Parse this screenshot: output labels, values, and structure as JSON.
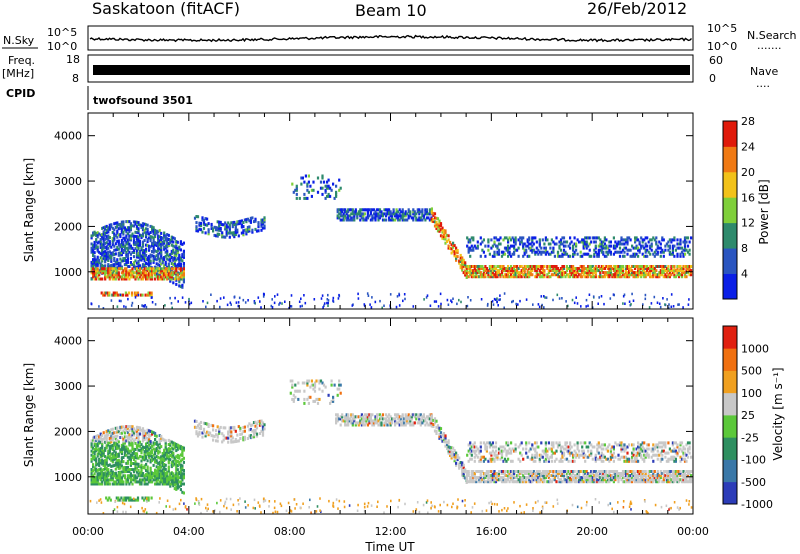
{
  "header": {
    "station": "Saskatoon (fitACF)",
    "beam": "Beam 10",
    "date": "26/Feb/2012"
  },
  "panels": {
    "nsky": {
      "label": "N.Sky",
      "tick_top": "10^5",
      "tick_bottom": "10^0",
      "right_label": "N.Search",
      "right_dots": "·······",
      "right_tick_top": "10^5",
      "right_tick_bottom": "10^0"
    },
    "freq": {
      "label_line1": "Freq.",
      "label_line2": "[MHz]",
      "tick_top": "18",
      "tick_bottom": "8",
      "right_label": "Nave",
      "right_dots": "····",
      "right_tick_top": "60",
      "right_tick_bottom": "0"
    },
    "cpid": {
      "label": "CPID",
      "value": "twofsound 3501"
    }
  },
  "chart_data": [
    {
      "type": "heatmap",
      "title": "",
      "xlabel": "Time UT",
      "ylabel": "Slant Range [km]",
      "x_ticks": [
        "00:00",
        "04:00",
        "08:00",
        "12:00",
        "16:00",
        "20:00",
        "00:00"
      ],
      "x_range_hours": [
        0,
        24
      ],
      "y_ticks": [
        1000,
        2000,
        3000,
        4000
      ],
      "ylim": [
        180,
        4500
      ],
      "colorbar": {
        "label": "Power [dB]",
        "ticks": [
          "4",
          "8",
          "12",
          "16",
          "20",
          "24",
          "28"
        ],
        "colors": [
          "#0a1fe6",
          "#2a55c0",
          "#2e8a6c",
          "#7fcf3a",
          "#f2c21a",
          "#f07a14",
          "#e01a0a"
        ]
      }
    },
    {
      "type": "heatmap",
      "title": "",
      "xlabel": "Time UT",
      "ylabel": "Slant Range [km]",
      "x_ticks": [
        "00:00",
        "04:00",
        "08:00",
        "12:00",
        "16:00",
        "20:00",
        "00:00"
      ],
      "x_range_hours": [
        0,
        24
      ],
      "y_ticks": [
        1000,
        2000,
        3000,
        4000
      ],
      "ylim": [
        180,
        4500
      ],
      "colorbar": {
        "label": "Velocity [m s⁻¹]",
        "ticks": [
          "1000",
          "500",
          "100",
          "25",
          "-25",
          "-100",
          "-500",
          "-1000"
        ],
        "colors": [
          "#2c3cb8",
          "#3a78a8",
          "#2e8f60",
          "#5bc83a",
          "#c8c8c8",
          "#f0a020",
          "#f07010",
          "#e02010"
        ]
      }
    }
  ]
}
